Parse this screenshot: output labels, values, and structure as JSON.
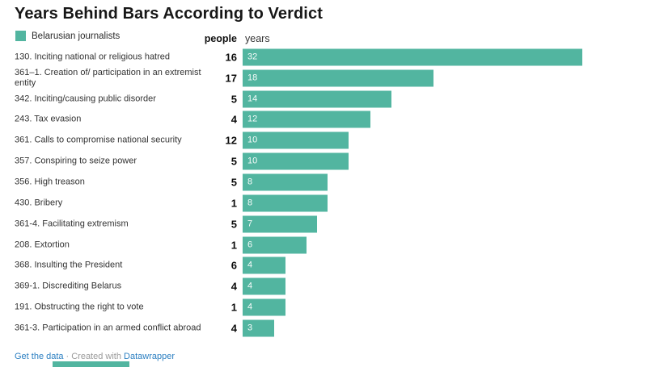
{
  "title": "Years Behind Bars According to Verdict",
  "legend": {
    "label": "Belarusian journalists",
    "swatch_color": "#52b5a0"
  },
  "columns": {
    "people": "people",
    "years": "years"
  },
  "chart_data": {
    "type": "bar",
    "orientation": "horizontal",
    "title": "Years Behind Bars According to Verdict",
    "legend": [
      "Belarusian journalists"
    ],
    "legend_position": "top-left",
    "grid": false,
    "xlabel": "years",
    "xlim": [
      0,
      33.5
    ],
    "bar_color": "#52b5a0",
    "categories": [
      "130. Inciting national or religious hatred",
      "361–1. Creation of/ participation in an extremist entity",
      "342. Inciting/causing public disorder",
      "243. Tax evasion",
      "361. Calls to compromise national security",
      "357. Conspiring to seize power",
      "356. High treason",
      "430. Bribery",
      "361-4. Facilitating extremism",
      "208. Extortion",
      "368. Insulting the President",
      "369-1. Discrediting Belarus",
      "191. Obstructing the right to vote",
      "361-3. Participation in an armed conflict abroad"
    ],
    "series": [
      {
        "name": "people",
        "values": [
          16,
          17,
          5,
          4,
          12,
          5,
          5,
          1,
          5,
          1,
          6,
          4,
          1,
          4
        ]
      },
      {
        "name": "years",
        "values": [
          32,
          18,
          14,
          12,
          10,
          10,
          8,
          8,
          7,
          6,
          4,
          4,
          4,
          3
        ]
      }
    ]
  },
  "footer": {
    "get_data_label": "Get the data",
    "separator": "·",
    "credit_text": "Created with",
    "datawrapper_label": "Datawrapper"
  }
}
